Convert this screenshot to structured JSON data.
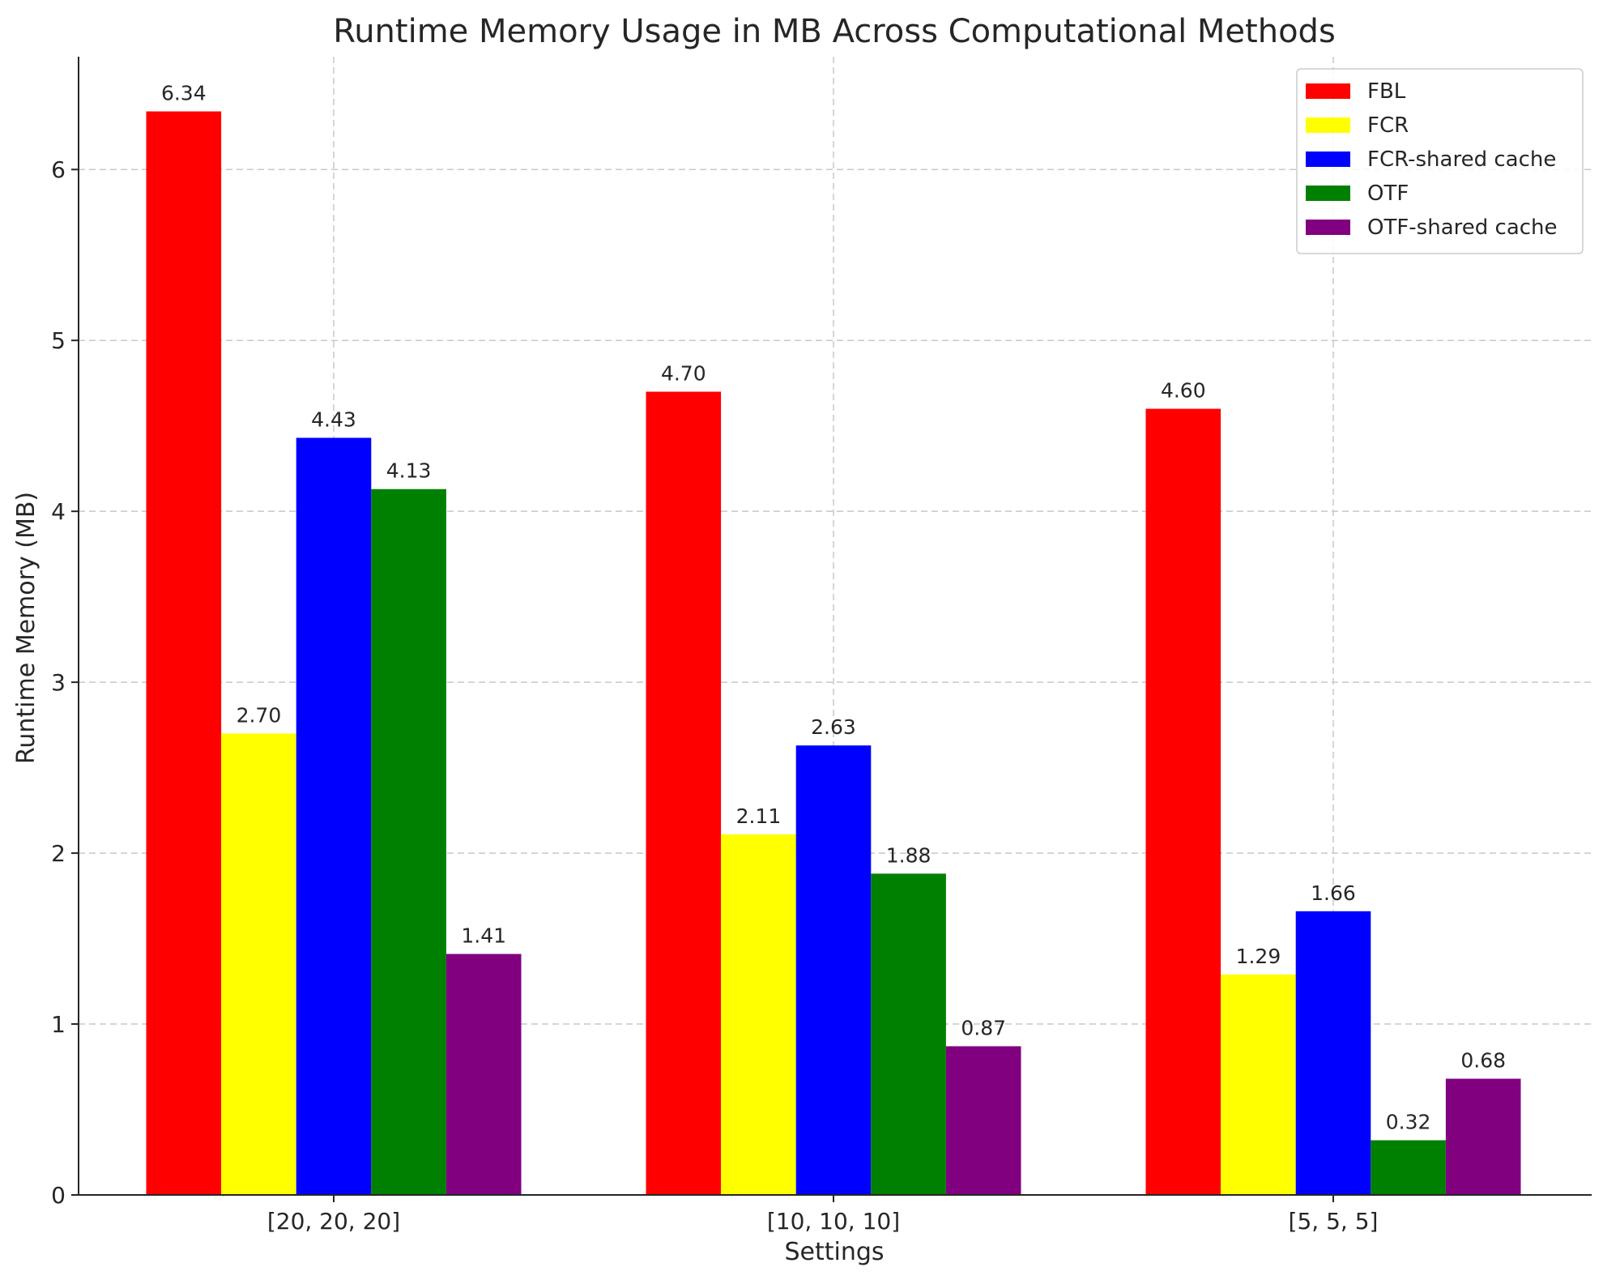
{
  "chart_data": {
    "type": "bar",
    "title": "Runtime Memory Usage in MB Across Computational Methods",
    "xlabel": "Settings",
    "ylabel": "Runtime Memory (MB)",
    "categories": [
      "[20, 20, 20]",
      "[10, 10, 10]",
      "[5, 5, 5]"
    ],
    "ylim": [
      0,
      6.66
    ],
    "yticks": [
      0,
      1,
      2,
      3,
      4,
      5,
      6
    ],
    "grid": true,
    "legend_position": "top-right",
    "series": [
      {
        "name": "FBL",
        "color": "#ff0000",
        "values": [
          6.34,
          4.7,
          4.6
        ],
        "labels": [
          "6.34",
          "4.70",
          "4.60"
        ]
      },
      {
        "name": "FCR",
        "color": "#ffff00",
        "values": [
          2.7,
          2.11,
          1.29
        ],
        "labels": [
          "2.70",
          "2.11",
          "1.29"
        ]
      },
      {
        "name": "FCR-shared cache",
        "color": "#0000ff",
        "values": [
          4.43,
          2.63,
          1.66
        ],
        "labels": [
          "4.43",
          "2.63",
          "1.66"
        ]
      },
      {
        "name": "OTF",
        "color": "#008000",
        "values": [
          4.13,
          1.88,
          0.32
        ],
        "labels": [
          "4.13",
          "1.88",
          "0.32"
        ]
      },
      {
        "name": "OTF-shared cache",
        "color": "#800080",
        "values": [
          1.41,
          0.87,
          0.68
        ],
        "labels": [
          "1.41",
          "0.87",
          "0.68"
        ]
      }
    ]
  }
}
